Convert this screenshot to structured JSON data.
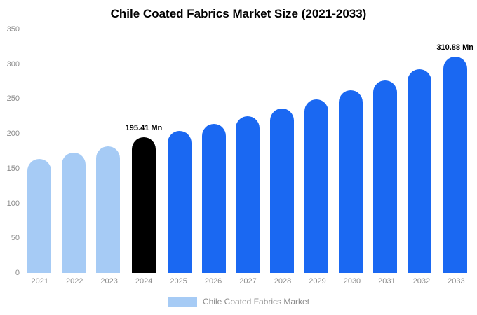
{
  "title": "Chile Coated Fabrics Market Size (2021-2033)",
  "legend": {
    "label": "Chile Coated Fabrics Market",
    "swatch_color": "#A6CBF5"
  },
  "colors": {
    "historical_bar": "#A6CBF5",
    "highlight_bar": "#000000",
    "forecast_bar": "#1A68F2",
    "axis_text": "#8c8c8c",
    "title_text": "#000000",
    "background": "#ffffff"
  },
  "chart_data": {
    "type": "bar",
    "title": "Chile Coated Fabrics Market Size (2021-2033)",
    "categories": [
      "2021",
      "2022",
      "2023",
      "2024",
      "2025",
      "2026",
      "2027",
      "2028",
      "2029",
      "2030",
      "2031",
      "2032",
      "2033"
    ],
    "values": [
      164,
      173,
      182,
      195.41,
      204,
      214,
      225,
      236,
      249,
      263,
      277,
      293,
      310.88
    ],
    "unit": "Mn",
    "bar_colors": [
      "#A6CBF5",
      "#A6CBF5",
      "#A6CBF5",
      "#000000",
      "#1A68F2",
      "#1A68F2",
      "#1A68F2",
      "#1A68F2",
      "#1A68F2",
      "#1A68F2",
      "#1A68F2",
      "#1A68F2",
      "#1A68F2"
    ],
    "data_labels": [
      {
        "index": 3,
        "text": "195.41 Mn"
      },
      {
        "index": 12,
        "text": "310.88 Mn"
      }
    ],
    "xlabel": "",
    "ylabel": "",
    "ylim": [
      0,
      350
    ],
    "yticks": [
      0,
      50,
      100,
      150,
      200,
      250,
      300,
      350
    ],
    "grid": false,
    "legend_entries": [
      "Chile Coated Fabrics Market"
    ],
    "legend_position": "bottom"
  }
}
